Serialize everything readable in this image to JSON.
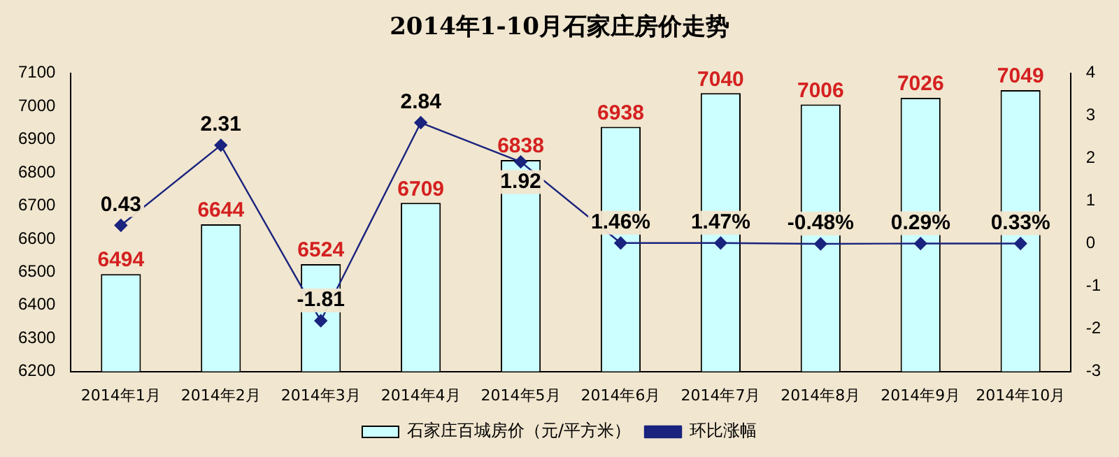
{
  "chart_data": {
    "type": "bar",
    "title": "2014年1-10月石家庄房价走势",
    "categories": [
      "2014年1月",
      "2014年2月",
      "2014年3月",
      "2014年4月",
      "2014年5月",
      "2014年6月",
      "2014年7月",
      "2014年8月",
      "2014年9月",
      "2014年10月"
    ],
    "series": [
      {
        "name": "石家庄百城房价（元/平方米）",
        "color": "#ccffff",
        "values": [
          6494,
          6644,
          6524,
          6709,
          6838,
          6938,
          7040,
          7006,
          7026,
          7049
        ],
        "value_labels": [
          "6494",
          "6644",
          "6524",
          "6709",
          "6838",
          "6938",
          "7040",
          "7006",
          "7026",
          "7049"
        ]
      },
      {
        "name": "环比涨幅",
        "type": "line",
        "axis": "y2",
        "color": "#1a237e",
        "values": [
          0.43,
          2.31,
          -1.81,
          2.84,
          1.92,
          0.0146,
          0.0147,
          -0.0048,
          0.0029,
          0.0033
        ],
        "value_labels": [
          "0.43",
          "2.31",
          "-1.81",
          "2.84",
          "1.92",
          "1.46%",
          "1.47%",
          "-0.48%",
          "0.29%",
          "0.33%"
        ]
      }
    ],
    "ylim": [
      6200,
      7100
    ],
    "yticks": [
      6200,
      6300,
      6400,
      6500,
      6600,
      6700,
      6800,
      6900,
      7000,
      7100
    ],
    "y2lim": [
      -3,
      4
    ],
    "y2ticks": [
      -3,
      -2,
      -1,
      0,
      1,
      2,
      3,
      4
    ],
    "marker": "diamond",
    "legend": "bottom",
    "grid": false
  }
}
